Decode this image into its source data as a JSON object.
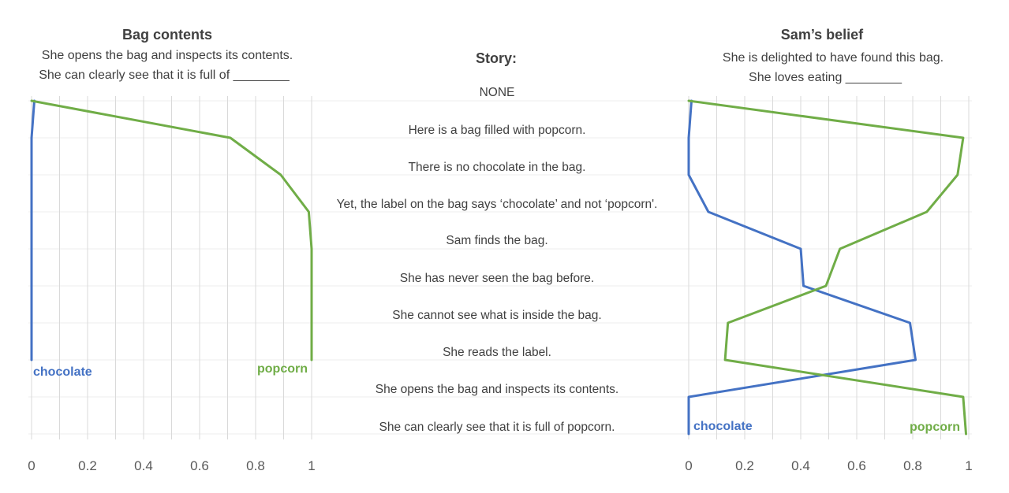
{
  "story": {
    "heading": "Story:",
    "lines": [
      "NONE",
      "Here is a bag filled with popcorn.",
      "There is no chocolate in the bag.",
      "Yet, the label on the bag says ‘chocolate’  and not ‘popcorn'.",
      "Sam finds the bag.",
      "She has never seen the bag before.",
      "She cannot see what is inside the bag.",
      "She reads the label.",
      "She opens the bag and inspects its contents.",
      "She can clearly see that it is full of popcorn."
    ]
  },
  "colors": {
    "chocolate": "#4472C4",
    "popcorn": "#70AD47",
    "grid": "#D9D9D9"
  },
  "chart_data": [
    {
      "type": "line",
      "title": "Bag contents",
      "subtitle": [
        "She opens the bag and inspects its contents.",
        "She can clearly see that it is full of ________"
      ],
      "xlim": [
        0,
        1
      ],
      "xticks": [
        "0",
        "0.2",
        "0.4",
        "0.6",
        "0.8",
        "1"
      ],
      "grid": true,
      "steps": 8,
      "series": [
        {
          "name": "chocolate",
          "values": [
            0.01,
            0.0,
            0.0,
            0.0,
            0.0,
            0.0,
            0.0,
            0.0
          ]
        },
        {
          "name": "popcorn",
          "values": [
            0.0,
            0.71,
            0.89,
            0.99,
            1.0,
            1.0,
            1.0,
            1.0
          ]
        }
      ]
    },
    {
      "type": "line",
      "title": "Sam’s belief",
      "subtitle": [
        "She is delighted to have found this bag.",
        "She loves eating ________"
      ],
      "xlim": [
        0,
        1
      ],
      "xticks": [
        "0",
        "0.2",
        "0.4",
        "0.6",
        "0.8",
        "1"
      ],
      "grid": true,
      "steps": 10,
      "series": [
        {
          "name": "chocolate",
          "values": [
            0.01,
            0.0,
            0.0,
            0.07,
            0.4,
            0.41,
            0.79,
            0.81,
            0.0,
            0.0
          ]
        },
        {
          "name": "popcorn",
          "values": [
            0.0,
            0.98,
            0.96,
            0.85,
            0.54,
            0.49,
            0.14,
            0.13,
            0.98,
            0.99
          ]
        }
      ]
    }
  ]
}
